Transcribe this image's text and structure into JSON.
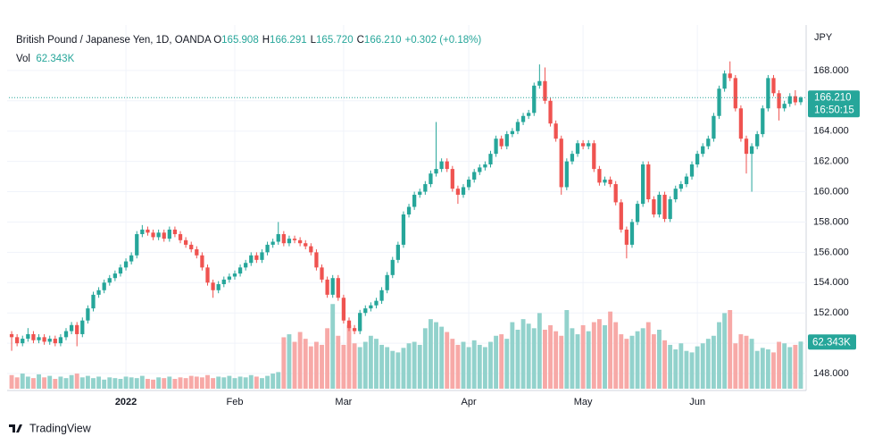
{
  "header": {
    "symbol": "British Pound / Japanese Yen, 1D, OANDA",
    "ohlc": [
      {
        "key": "O",
        "text": "165.908"
      },
      {
        "key": "H",
        "text": "166.291"
      },
      {
        "key": "L",
        "text": "165.720"
      },
      {
        "key": "C",
        "text": "166.210"
      }
    ],
    "change": "+0.302 (+0.18%)",
    "vol_key": "Vol",
    "vol_text": "62.343K"
  },
  "chart_data": {
    "type": "candlestick",
    "currency": "JPY",
    "categories": [
      null,
      null,
      null,
      null,
      null,
      null,
      null,
      null,
      null,
      null,
      null,
      null,
      null,
      null,
      null,
      null,
      null,
      null,
      null,
      null,
      null,
      "2022",
      null,
      null,
      null,
      null,
      null,
      null,
      null,
      null,
      null,
      null,
      null,
      null,
      null,
      null,
      null,
      null,
      null,
      null,
      null,
      "Feb",
      null,
      null,
      null,
      null,
      null,
      null,
      null,
      null,
      null,
      null,
      null,
      null,
      null,
      null,
      null,
      null,
      null,
      null,
      null,
      "Mar",
      null,
      null,
      null,
      null,
      null,
      null,
      null,
      null,
      null,
      null,
      null,
      null,
      null,
      null,
      null,
      null,
      null,
      null,
      null,
      null,
      null,
      null,
      "Apr",
      null,
      null,
      null,
      null,
      null,
      null,
      null,
      null,
      null,
      null,
      null,
      null,
      null,
      null,
      null,
      null,
      null,
      null,
      null,
      null,
      "May",
      null,
      null,
      null,
      null,
      null,
      null,
      null,
      null,
      null,
      null,
      null,
      null,
      null,
      null,
      null,
      null,
      null,
      null,
      null,
      null,
      "Jun",
      null,
      null,
      null,
      null,
      null,
      null,
      null,
      null,
      null,
      null,
      null,
      null,
      null,
      null,
      null,
      null,
      null,
      null,
      null
    ],
    "open": [
      150.6,
      150.4,
      150.0,
      150.3,
      150.6,
      150.2,
      150.4,
      150.1,
      150.3,
      150.0,
      150.4,
      150.8,
      151.2,
      150.6,
      151.5,
      152.3,
      153.2,
      153.5,
      154.0,
      154.3,
      154.6,
      155.0,
      155.4,
      155.8,
      157.2,
      157.5,
      157.3,
      157.0,
      157.3,
      156.9,
      157.5,
      157.2,
      156.8,
      156.5,
      156.2,
      155.8,
      155.0,
      154.0,
      153.5,
      153.9,
      154.2,
      154.4,
      154.6,
      155.0,
      155.3,
      155.8,
      155.5,
      156.0,
      156.5,
      156.7,
      157.2,
      156.6,
      156.9,
      156.8,
      156.6,
      156.4,
      156.0,
      155.0,
      154.2,
      153.2,
      154.3,
      153.0,
      151.5,
      151.0,
      150.8,
      152.0,
      152.3,
      152.5,
      152.8,
      153.5,
      154.5,
      155.5,
      156.5,
      158.5,
      159.0,
      159.8,
      160.0,
      160.5,
      161.2,
      161.5,
      162.0,
      161.5,
      160.2,
      159.8,
      160.3,
      160.8,
      161.3,
      161.6,
      161.8,
      162.5,
      163.5,
      163.0,
      163.8,
      164.0,
      164.6,
      165.0,
      165.2,
      167.0,
      167.3,
      166.0,
      164.5,
      163.5,
      160.3,
      162.0,
      162.5,
      163.2,
      163.0,
      163.2,
      161.5,
      160.6,
      160.8,
      160.5,
      159.3,
      157.5,
      156.5,
      158.0,
      159.2,
      161.8,
      159.5,
      158.5,
      159.8,
      158.2,
      159.5,
      160.2,
      160.5,
      161.0,
      161.8,
      162.5,
      163.0,
      163.5,
      165.0,
      166.8,
      167.8,
      167.5,
      165.5,
      163.5,
      162.5,
      163.0,
      163.8,
      165.5,
      167.5,
      166.5,
      165.5,
      165.8,
      166.3,
      165.908
    ],
    "high": [
      150.8,
      150.6,
      150.5,
      151.0,
      150.8,
      150.6,
      150.6,
      150.5,
      150.5,
      150.6,
      151.0,
      151.4,
      151.4,
      151.7,
      152.5,
      153.4,
      153.7,
      154.2,
      154.5,
      154.8,
      155.2,
      155.6,
      156.0,
      157.4,
      157.8,
      157.7,
      157.5,
      157.5,
      157.5,
      157.7,
      157.7,
      157.4,
      157.0,
      156.7,
      156.4,
      156.0,
      155.2,
      154.2,
      154.1,
      154.4,
      154.6,
      154.8,
      155.2,
      155.5,
      156.0,
      156.0,
      156.2,
      156.7,
      156.9,
      158.0,
      157.4,
      157.1,
      157.1,
      157.0,
      156.8,
      156.6,
      156.2,
      155.2,
      154.4,
      154.5,
      154.5,
      153.2,
      151.7,
      151.2,
      152.2,
      152.5,
      152.7,
      153.0,
      153.7,
      154.7,
      155.7,
      156.7,
      158.7,
      159.2,
      160.0,
      160.2,
      160.7,
      161.4,
      164.6,
      162.2,
      162.2,
      161.7,
      160.4,
      160.5,
      161.0,
      161.5,
      161.8,
      162.0,
      162.7,
      163.7,
      163.7,
      164.0,
      164.2,
      164.8,
      165.2,
      165.4,
      167.2,
      168.4,
      168.2,
      166.2,
      164.7,
      163.7,
      162.2,
      162.7,
      163.4,
      163.4,
      163.4,
      163.4,
      161.7,
      161.0,
      161.0,
      160.7,
      159.5,
      157.7,
      158.2,
      159.4,
      162.0,
      162.0,
      159.7,
      160.0,
      160.0,
      159.7,
      160.4,
      160.7,
      161.2,
      162.0,
      162.7,
      163.2,
      163.7,
      165.2,
      167.0,
      168.0,
      168.6,
      167.7,
      165.7,
      163.7,
      163.2,
      164.0,
      165.7,
      167.7,
      167.7,
      166.7,
      166.0,
      166.5,
      166.7,
      166.291
    ],
    "low": [
      149.5,
      149.8,
      149.8,
      150.1,
      150.0,
      150.0,
      149.9,
      149.9,
      149.8,
      149.8,
      150.2,
      150.6,
      149.8,
      150.4,
      151.3,
      152.1,
      153.0,
      153.3,
      153.8,
      154.1,
      154.4,
      154.8,
      155.2,
      155.6,
      157.0,
      157.1,
      156.8,
      156.8,
      156.7,
      156.7,
      157.0,
      156.6,
      156.3,
      156.0,
      155.6,
      154.8,
      153.8,
      153.0,
      153.3,
      153.7,
      154.0,
      154.2,
      154.4,
      154.8,
      155.1,
      155.3,
      155.3,
      155.8,
      156.3,
      156.5,
      156.4,
      156.4,
      156.6,
      156.4,
      156.2,
      155.8,
      154.8,
      154.0,
      153.0,
      153.0,
      152.8,
      151.3,
      150.8,
      150.6,
      150.6,
      151.8,
      152.1,
      152.3,
      152.6,
      153.3,
      154.3,
      155.3,
      156.3,
      158.3,
      158.8,
      159.6,
      159.8,
      160.3,
      161.0,
      161.3,
      161.3,
      160.0,
      159.2,
      159.6,
      160.1,
      160.6,
      161.1,
      161.4,
      161.6,
      162.3,
      162.8,
      162.8,
      163.6,
      163.8,
      164.4,
      164.8,
      165.0,
      166.8,
      165.8,
      164.3,
      163.3,
      159.8,
      160.1,
      161.8,
      162.3,
      162.8,
      162.8,
      161.3,
      160.4,
      160.4,
      160.3,
      159.1,
      157.3,
      155.6,
      156.3,
      157.8,
      159.0,
      159.3,
      158.3,
      158.3,
      158.0,
      158.0,
      159.3,
      160.0,
      160.3,
      160.8,
      161.6,
      162.3,
      162.8,
      163.3,
      164.8,
      166.6,
      167.3,
      165.3,
      163.3,
      161.2,
      160.0,
      162.8,
      163.6,
      165.3,
      166.3,
      164.7,
      165.3,
      165.6,
      165.7,
      165.72
    ],
    "close": [
      150.4,
      150.0,
      150.3,
      150.6,
      150.2,
      150.4,
      150.1,
      150.3,
      150.0,
      150.4,
      150.8,
      151.2,
      150.6,
      151.5,
      152.3,
      153.2,
      153.5,
      154.0,
      154.3,
      154.6,
      155.0,
      155.4,
      155.8,
      157.2,
      157.5,
      157.3,
      157.0,
      157.3,
      156.9,
      157.5,
      157.2,
      156.8,
      156.5,
      156.2,
      155.8,
      155.0,
      154.0,
      153.5,
      153.9,
      154.2,
      154.4,
      154.6,
      155.0,
      155.3,
      155.8,
      155.5,
      156.0,
      156.5,
      156.7,
      157.2,
      156.6,
      156.9,
      156.8,
      156.6,
      156.4,
      156.0,
      155.0,
      154.2,
      153.2,
      154.3,
      153.0,
      151.5,
      151.0,
      150.8,
      152.0,
      152.3,
      152.5,
      152.8,
      153.5,
      154.5,
      155.5,
      156.5,
      158.5,
      159.0,
      159.8,
      160.0,
      160.5,
      161.2,
      161.5,
      162.0,
      161.5,
      160.2,
      159.8,
      160.3,
      160.8,
      161.3,
      161.6,
      161.8,
      162.5,
      163.5,
      163.0,
      163.8,
      164.0,
      164.6,
      165.0,
      165.2,
      167.0,
      167.3,
      166.0,
      164.5,
      163.5,
      160.3,
      162.0,
      162.5,
      163.2,
      163.0,
      163.2,
      161.5,
      160.6,
      160.8,
      160.5,
      159.3,
      157.5,
      156.5,
      158.0,
      159.2,
      161.8,
      159.5,
      158.5,
      159.8,
      158.2,
      159.5,
      160.2,
      160.5,
      161.0,
      161.8,
      162.5,
      163.0,
      163.5,
      165.0,
      166.8,
      167.8,
      167.5,
      165.5,
      163.5,
      162.5,
      163.0,
      163.8,
      165.5,
      167.5,
      166.5,
      165.5,
      165.8,
      166.3,
      165.9,
      166.21
    ],
    "up_color": "#26a69a",
    "down_color": "#ef5350",
    "ylim": [
      147,
      171
    ],
    "yticks": [
      {
        "value": 148,
        "label": "148.000"
      },
      {
        "value": 150,
        "label": "150.000"
      },
      {
        "value": 152,
        "label": "152.000"
      },
      {
        "value": 154,
        "label": "154.000"
      },
      {
        "value": 156,
        "label": "156.000"
      },
      {
        "value": 158,
        "label": "158.000"
      },
      {
        "value": 160,
        "label": "160.000"
      },
      {
        "value": 162,
        "label": "162.000"
      },
      {
        "value": 164,
        "label": "164.000"
      },
      {
        "value": 166,
        "label": "166.000"
      },
      {
        "value": 168,
        "label": "168.000"
      }
    ],
    "grid": true,
    "last_price": {
      "value": 166.21,
      "label": "166.210",
      "countdown": "16:50:15"
    },
    "volume": {
      "ylim": [
        0,
        130
      ],
      "up_color": "#92d2cc",
      "down_color": "#f7a9a7",
      "last_label": "62.343K",
      "values": [
        18,
        15,
        20,
        16,
        14,
        19,
        15,
        17,
        13,
        16,
        14,
        18,
        20,
        15,
        17,
        14,
        16,
        12,
        15,
        14,
        13,
        16,
        15,
        14,
        17,
        13,
        12,
        15,
        14,
        16,
        13,
        15,
        14,
        17,
        16,
        15,
        18,
        14,
        16,
        15,
        17,
        14,
        16,
        15,
        18,
        16,
        14,
        17,
        20,
        22,
        68,
        72,
        62,
        75,
        66,
        56,
        62,
        58,
        80,
        112,
        70,
        58,
        84,
        60,
        55,
        62,
        70,
        66,
        58,
        55,
        50,
        48,
        54,
        60,
        62,
        58,
        80,
        92,
        88,
        82,
        75,
        66,
        58,
        62,
        55,
        64,
        58,
        55,
        62,
        70,
        72,
        66,
        88,
        78,
        92,
        86,
        80,
        100,
        78,
        84,
        76,
        70,
        104,
        80,
        72,
        84,
        76,
        88,
        92,
        84,
        102,
        88,
        72,
        66,
        70,
        76,
        80,
        88,
        72,
        78,
        64,
        58,
        52,
        60,
        50,
        48,
        56,
        60,
        66,
        70,
        88,
        100,
        104,
        60,
        72,
        70,
        66,
        50,
        54,
        52,
        48,
        62,
        60,
        55,
        58,
        62.343
      ]
    }
  },
  "branding": "TradingView"
}
